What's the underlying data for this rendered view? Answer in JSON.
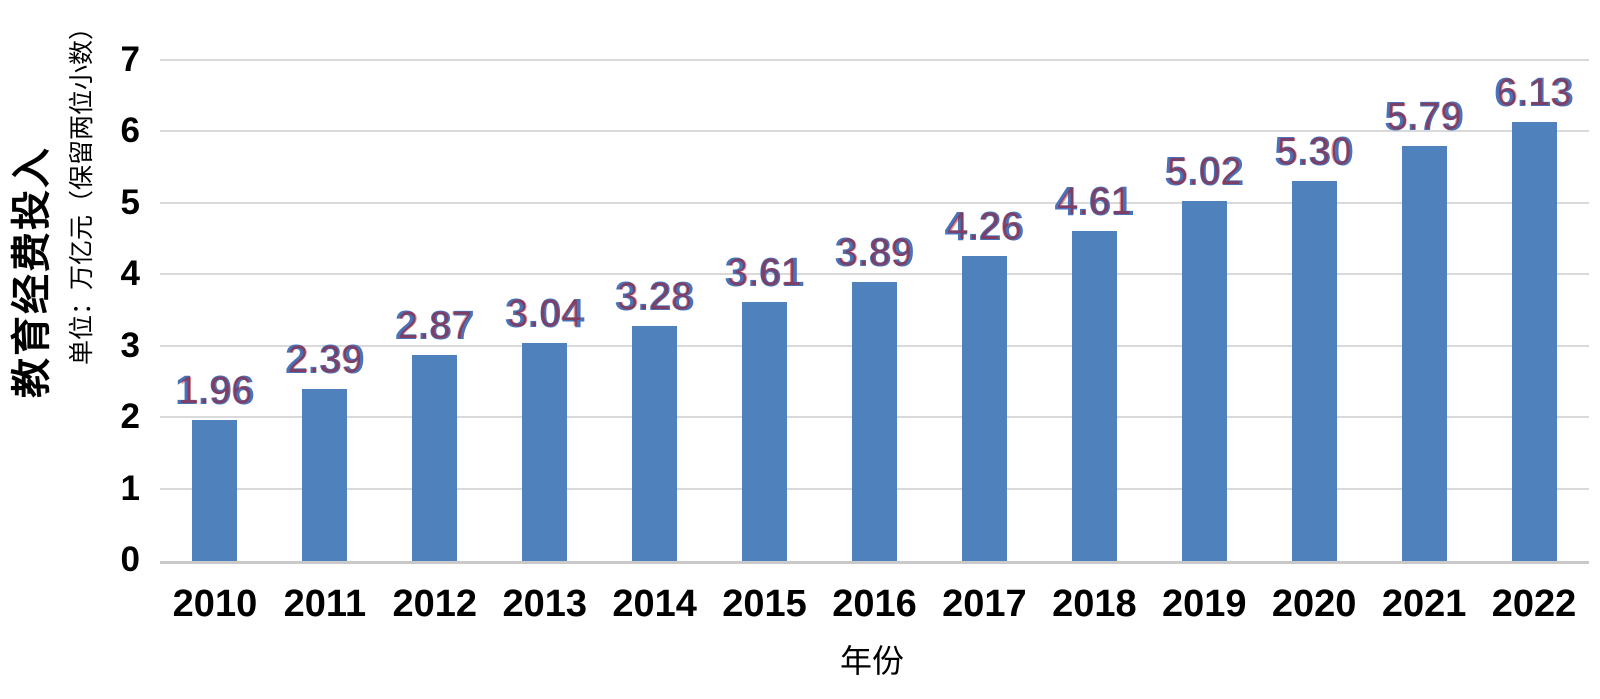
{
  "chart_data": {
    "type": "bar",
    "title": "",
    "ylabel": "教育经费投入",
    "unit_note": "单位：万亿元（保留两位小数）",
    "xlabel": "年份",
    "categories": [
      "2010",
      "2011",
      "2012",
      "2013",
      "2014",
      "2015",
      "2016",
      "2017",
      "2018",
      "2019",
      "2020",
      "2021",
      "2022"
    ],
    "values": [
      1.96,
      2.39,
      2.87,
      3.04,
      3.28,
      3.61,
      3.89,
      4.26,
      4.61,
      5.02,
      5.3,
      5.79,
      6.13
    ],
    "value_labels": [
      "1.96",
      "2.39",
      "2.87",
      "3.04",
      "3.28",
      "3.61",
      "3.89",
      "4.26",
      "4.61",
      "5.02",
      "5.30",
      "5.79",
      "6.13"
    ],
    "ylim": [
      0,
      7
    ],
    "y_ticks": [
      0,
      1,
      2,
      3,
      4,
      5,
      6,
      7
    ],
    "grid": "horizontal",
    "legend": "none",
    "colors": {
      "bar": "#4F81BD",
      "data_label": "#4A72B8",
      "data_label_overlay": "#C00000",
      "gridline": "#D9D9D9",
      "axis_line": "#C9C9C9",
      "tick_label": "#000000"
    }
  }
}
